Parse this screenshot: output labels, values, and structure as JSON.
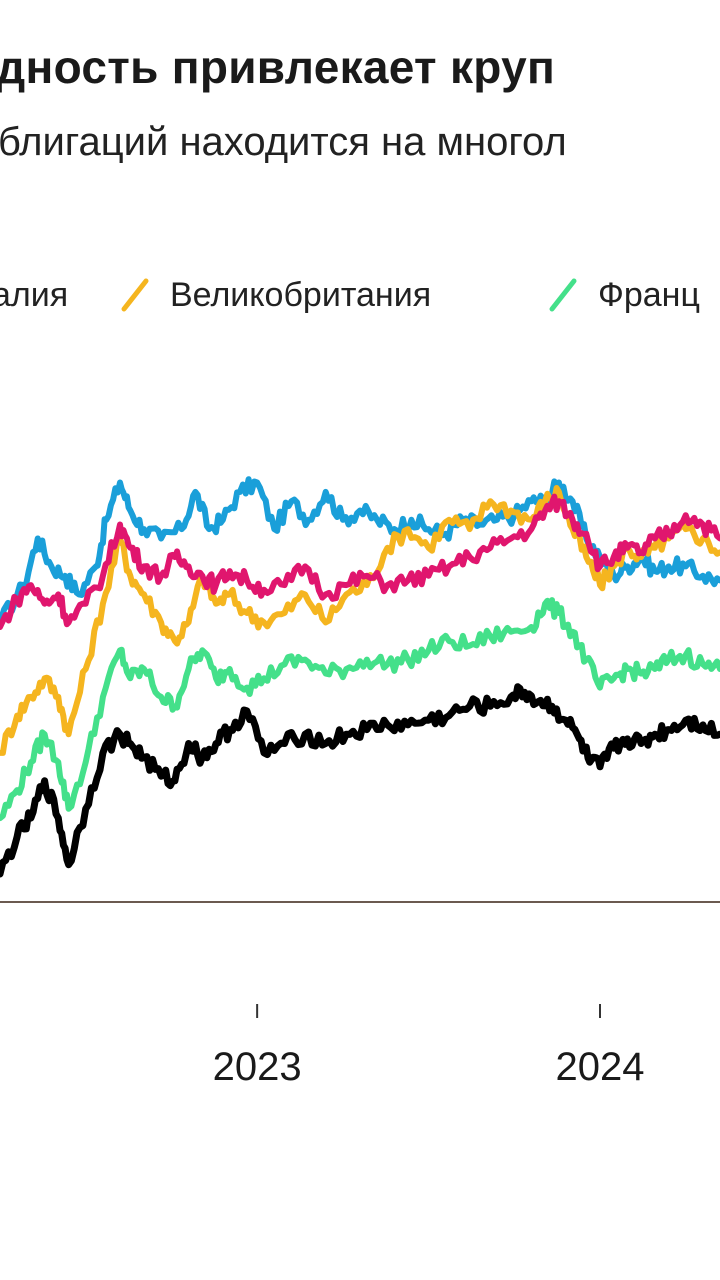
{
  "chart_data": {
    "type": "line",
    "title": "дность привлекает круп",
    "subtitle": "блигаций находится на многол",
    "x_ticks": [
      {
        "label": "2023",
        "x": 2023.0
      },
      {
        "label": "2024",
        "x": 2024.0
      }
    ],
    "xlim": [
      2022.25,
      2024.35
    ],
    "ylim": [
      0.0,
      5.6
    ],
    "grid": false,
    "legend_position": "top",
    "series": [
      {
        "name": "алия",
        "color": "#1a9fd9",
        "points": [
          [
            2022.25,
            3.0
          ],
          [
            2022.32,
            3.4
          ],
          [
            2022.36,
            3.9
          ],
          [
            2022.4,
            3.6
          ],
          [
            2022.44,
            3.5
          ],
          [
            2022.48,
            3.3
          ],
          [
            2022.53,
            3.6
          ],
          [
            2022.56,
            4.1
          ],
          [
            2022.6,
            4.5
          ],
          [
            2022.63,
            4.2
          ],
          [
            2022.67,
            4.0
          ],
          [
            2022.72,
            3.9
          ],
          [
            2022.78,
            4.0
          ],
          [
            2022.82,
            4.4
          ],
          [
            2022.86,
            4.0
          ],
          [
            2022.9,
            4.1
          ],
          [
            2022.95,
            4.4
          ],
          [
            2023.0,
            4.5
          ],
          [
            2023.05,
            4.0
          ],
          [
            2023.1,
            4.3
          ],
          [
            2023.15,
            4.1
          ],
          [
            2023.2,
            4.4
          ],
          [
            2023.25,
            4.1
          ],
          [
            2023.3,
            4.2
          ],
          [
            2023.35,
            4.1
          ],
          [
            2023.4,
            4.0
          ],
          [
            2023.45,
            4.1
          ],
          [
            2023.5,
            4.0
          ],
          [
            2023.55,
            3.95
          ],
          [
            2023.6,
            4.1
          ],
          [
            2023.65,
            4.05
          ],
          [
            2023.7,
            4.1
          ],
          [
            2023.75,
            4.15
          ],
          [
            2023.8,
            4.3
          ],
          [
            2023.84,
            4.3
          ],
          [
            2023.88,
            4.5
          ],
          [
            2023.92,
            4.3
          ],
          [
            2023.96,
            3.9
          ],
          [
            2024.0,
            3.7
          ],
          [
            2024.04,
            3.5
          ],
          [
            2024.08,
            3.6
          ],
          [
            2024.12,
            3.7
          ],
          [
            2024.16,
            3.55
          ],
          [
            2024.2,
            3.6
          ],
          [
            2024.25,
            3.6
          ],
          [
            2024.3,
            3.5
          ],
          [
            2024.35,
            3.45
          ]
        ]
      },
      {
        "name": "Великобритания",
        "color": "#f5b51f",
        "points": [
          [
            2022.25,
            1.6
          ],
          [
            2022.3,
            2.0
          ],
          [
            2022.34,
            2.2
          ],
          [
            2022.38,
            2.4
          ],
          [
            2022.42,
            2.2
          ],
          [
            2022.45,
            1.8
          ],
          [
            2022.5,
            2.5
          ],
          [
            2022.55,
            3.2
          ],
          [
            2022.6,
            3.9
          ],
          [
            2022.63,
            3.5
          ],
          [
            2022.67,
            3.3
          ],
          [
            2022.72,
            3.0
          ],
          [
            2022.76,
            2.8
          ],
          [
            2022.8,
            3.0
          ],
          [
            2022.84,
            3.5
          ],
          [
            2022.88,
            3.2
          ],
          [
            2022.92,
            3.3
          ],
          [
            2022.97,
            3.1
          ],
          [
            2023.02,
            3.0
          ],
          [
            2023.08,
            3.1
          ],
          [
            2023.14,
            3.3
          ],
          [
            2023.2,
            3.0
          ],
          [
            2023.26,
            3.3
          ],
          [
            2023.32,
            3.4
          ],
          [
            2023.38,
            3.8
          ],
          [
            2023.44,
            4.0
          ],
          [
            2023.5,
            3.8
          ],
          [
            2023.56,
            4.1
          ],
          [
            2023.62,
            4.0
          ],
          [
            2023.68,
            4.3
          ],
          [
            2023.74,
            4.2
          ],
          [
            2023.8,
            4.1
          ],
          [
            2023.84,
            4.3
          ],
          [
            2023.88,
            4.4
          ],
          [
            2023.92,
            4.0
          ],
          [
            2023.96,
            3.7
          ],
          [
            2024.0,
            3.4
          ],
          [
            2024.04,
            3.6
          ],
          [
            2024.08,
            3.8
          ],
          [
            2024.12,
            3.7
          ],
          [
            2024.16,
            3.8
          ],
          [
            2024.2,
            3.9
          ],
          [
            2024.25,
            4.0
          ],
          [
            2024.3,
            3.9
          ],
          [
            2024.35,
            3.75
          ]
        ]
      },
      {
        "name": "Франц",
        "color": "#44e08a",
        "points": [
          [
            2022.25,
            0.9
          ],
          [
            2022.3,
            1.2
          ],
          [
            2022.34,
            1.5
          ],
          [
            2022.38,
            1.8
          ],
          [
            2022.42,
            1.5
          ],
          [
            2022.45,
            1.0
          ],
          [
            2022.5,
            1.5
          ],
          [
            2022.55,
            2.2
          ],
          [
            2022.6,
            2.7
          ],
          [
            2022.63,
            2.4
          ],
          [
            2022.67,
            2.5
          ],
          [
            2022.72,
            2.2
          ],
          [
            2022.76,
            2.1
          ],
          [
            2022.8,
            2.5
          ],
          [
            2022.84,
            2.7
          ],
          [
            2022.88,
            2.4
          ],
          [
            2022.92,
            2.5
          ],
          [
            2022.97,
            2.3
          ],
          [
            2023.02,
            2.4
          ],
          [
            2023.08,
            2.55
          ],
          [
            2023.14,
            2.6
          ],
          [
            2023.2,
            2.45
          ],
          [
            2023.26,
            2.5
          ],
          [
            2023.32,
            2.6
          ],
          [
            2023.38,
            2.55
          ],
          [
            2023.44,
            2.6
          ],
          [
            2023.5,
            2.7
          ],
          [
            2023.56,
            2.8
          ],
          [
            2023.62,
            2.75
          ],
          [
            2023.68,
            2.85
          ],
          [
            2023.74,
            2.9
          ],
          [
            2023.8,
            2.95
          ],
          [
            2023.84,
            3.2
          ],
          [
            2023.88,
            3.1
          ],
          [
            2023.92,
            2.9
          ],
          [
            2023.96,
            2.6
          ],
          [
            2024.0,
            2.3
          ],
          [
            2024.04,
            2.4
          ],
          [
            2024.08,
            2.5
          ],
          [
            2024.12,
            2.45
          ],
          [
            2024.16,
            2.5
          ],
          [
            2024.2,
            2.6
          ],
          [
            2024.25,
            2.65
          ],
          [
            2024.3,
            2.55
          ],
          [
            2024.35,
            2.5
          ]
        ]
      },
      {
        "name": "",
        "color": "#e0166e",
        "points": [
          [
            2022.25,
            2.95
          ],
          [
            2022.3,
            3.25
          ],
          [
            2022.34,
            3.4
          ],
          [
            2022.38,
            3.2
          ],
          [
            2022.42,
            3.3
          ],
          [
            2022.45,
            3.0
          ],
          [
            2022.5,
            3.2
          ],
          [
            2022.55,
            3.5
          ],
          [
            2022.6,
            4.05
          ],
          [
            2022.63,
            3.8
          ],
          [
            2022.67,
            3.6
          ],
          [
            2022.72,
            3.5
          ],
          [
            2022.76,
            3.7
          ],
          [
            2022.8,
            3.6
          ],
          [
            2022.84,
            3.5
          ],
          [
            2022.88,
            3.4
          ],
          [
            2022.92,
            3.55
          ],
          [
            2022.97,
            3.45
          ],
          [
            2023.02,
            3.35
          ],
          [
            2023.08,
            3.4
          ],
          [
            2023.14,
            3.6
          ],
          [
            2023.2,
            3.3
          ],
          [
            2023.26,
            3.4
          ],
          [
            2023.32,
            3.5
          ],
          [
            2023.38,
            3.4
          ],
          [
            2023.44,
            3.45
          ],
          [
            2023.5,
            3.5
          ],
          [
            2023.56,
            3.6
          ],
          [
            2023.62,
            3.7
          ],
          [
            2023.68,
            3.8
          ],
          [
            2023.74,
            3.9
          ],
          [
            2023.8,
            4.0
          ],
          [
            2023.84,
            4.2
          ],
          [
            2023.88,
            4.3
          ],
          [
            2023.92,
            4.1
          ],
          [
            2023.96,
            3.95
          ],
          [
            2024.0,
            3.6
          ],
          [
            2024.04,
            3.7
          ],
          [
            2024.08,
            3.8
          ],
          [
            2024.12,
            3.75
          ],
          [
            2024.16,
            3.9
          ],
          [
            2024.2,
            3.95
          ],
          [
            2024.25,
            4.15
          ],
          [
            2024.3,
            4.05
          ],
          [
            2024.35,
            3.9
          ]
        ]
      },
      {
        "name": "",
        "color": "#000000",
        "points": [
          [
            2022.25,
            0.3
          ],
          [
            2022.3,
            0.7
          ],
          [
            2022.34,
            0.9
          ],
          [
            2022.38,
            1.3
          ],
          [
            2022.42,
            0.9
          ],
          [
            2022.45,
            0.4
          ],
          [
            2022.5,
            1.0
          ],
          [
            2022.55,
            1.6
          ],
          [
            2022.6,
            1.8
          ],
          [
            2022.63,
            1.7
          ],
          [
            2022.67,
            1.55
          ],
          [
            2022.72,
            1.35
          ],
          [
            2022.76,
            1.3
          ],
          [
            2022.8,
            1.7
          ],
          [
            2022.84,
            1.55
          ],
          [
            2022.88,
            1.7
          ],
          [
            2022.92,
            1.85
          ],
          [
            2022.97,
            2.05
          ],
          [
            2023.02,
            1.6
          ],
          [
            2023.08,
            1.7
          ],
          [
            2023.14,
            1.8
          ],
          [
            2023.2,
            1.7
          ],
          [
            2023.26,
            1.8
          ],
          [
            2023.32,
            1.85
          ],
          [
            2023.38,
            1.9
          ],
          [
            2023.44,
            1.9
          ],
          [
            2023.5,
            1.95
          ],
          [
            2023.56,
            2.0
          ],
          [
            2023.62,
            2.1
          ],
          [
            2023.68,
            2.1
          ],
          [
            2023.74,
            2.2
          ],
          [
            2023.78,
            2.25
          ],
          [
            2023.82,
            2.15
          ],
          [
            2023.86,
            2.1
          ],
          [
            2023.9,
            1.95
          ],
          [
            2023.94,
            1.75
          ],
          [
            2023.97,
            1.5
          ],
          [
            2024.0,
            1.45
          ],
          [
            2024.04,
            1.65
          ],
          [
            2024.08,
            1.75
          ],
          [
            2024.12,
            1.7
          ],
          [
            2024.16,
            1.8
          ],
          [
            2024.2,
            1.85
          ],
          [
            2024.25,
            1.95
          ],
          [
            2024.3,
            1.9
          ],
          [
            2024.35,
            1.8
          ]
        ]
      }
    ]
  }
}
